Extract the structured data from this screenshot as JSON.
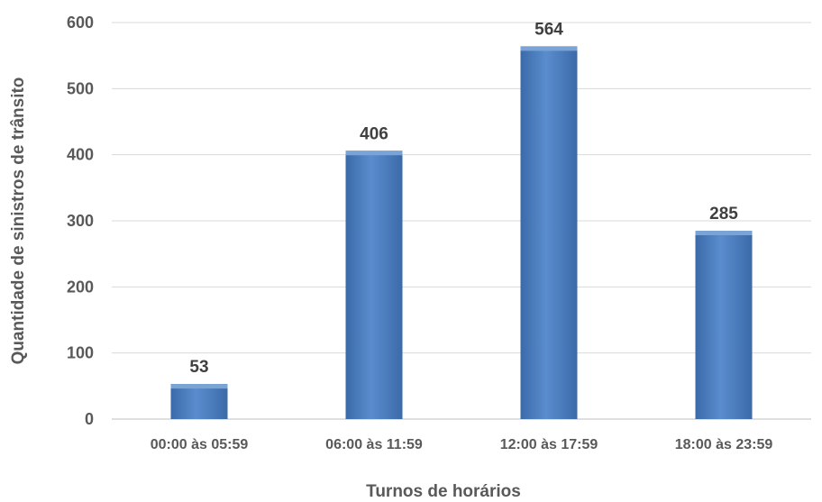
{
  "chart_data": {
    "type": "bar",
    "categories": [
      "00:00 às 05:59",
      "06:00 às 11:59",
      "12:00 às 17:59",
      "18:00 às 23:59"
    ],
    "values": [
      53,
      406,
      564,
      285
    ],
    "data_labels": [
      "53",
      "406",
      "564",
      "285"
    ],
    "title": "",
    "xlabel": "Turnos de horários",
    "ylabel": "Quantidade de sinistros de trânsito",
    "ylim": [
      0,
      600
    ],
    "yticks": [
      0,
      100,
      200,
      300,
      400,
      500,
      600
    ],
    "ytick_labels": [
      "0",
      "100",
      "200",
      "300",
      "400",
      "500",
      "600"
    ],
    "grid": true,
    "legend": "none",
    "colors": {
      "bar": "#4f81bd",
      "bar_dark": "#3a6aa6",
      "bar_light": "#7aa3d6",
      "grid": "#d9d9d9",
      "axis": "#bfbfbf"
    }
  }
}
